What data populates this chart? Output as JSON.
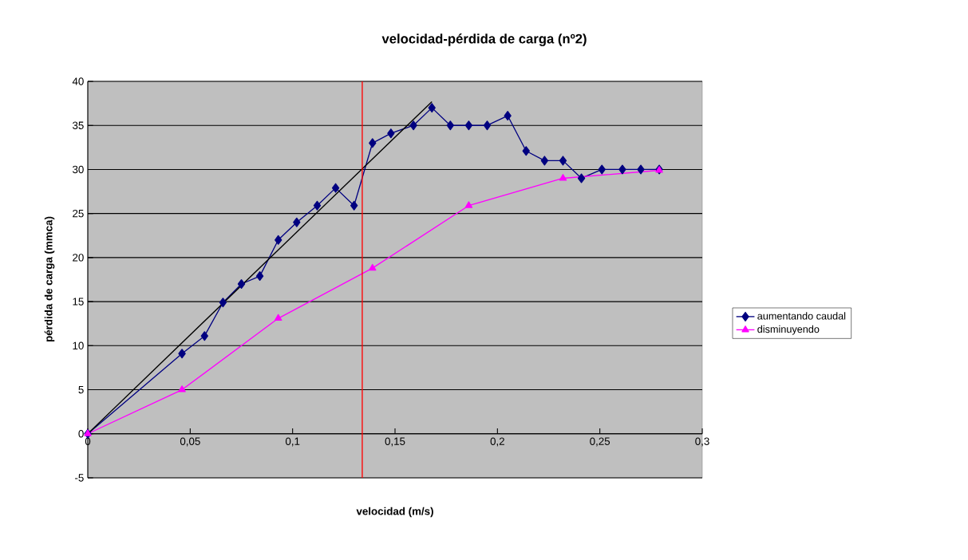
{
  "chart_data": {
    "type": "line",
    "title": "velocidad-pérdida de carga (nº2)",
    "xlabel": "velocidad (m/s)",
    "ylabel": "pérdida de carga (mmca)",
    "xlim": [
      0,
      0.3
    ],
    "ylim": [
      -5,
      40
    ],
    "xticks": [
      0,
      {
        "value": 0.05,
        "label": "0,05"
      },
      {
        "value": 0.1,
        "label": "0,1"
      },
      {
        "value": 0.15,
        "label": "0,15"
      },
      {
        "value": 0.2,
        "label": "0,2"
      },
      {
        "value": 0.25,
        "label": "0,25"
      },
      {
        "value": 0.3,
        "label": "0,3"
      }
    ],
    "yticks": [
      -5,
      0,
      5,
      10,
      15,
      20,
      25,
      30,
      35,
      40
    ],
    "grid": "y",
    "legend": "right",
    "series": [
      {
        "name": "aumentando caudal",
        "color": "#000080",
        "marker": "diamond",
        "x": [
          0,
          0.046,
          0.057,
          0.066,
          0.075,
          0.084,
          0.093,
          0.102,
          0.112,
          0.121,
          0.13,
          0.139,
          0.148,
          0.159,
          0.168,
          0.177,
          0.186,
          0.195,
          0.205,
          0.214,
          0.223,
          0.232,
          0.241,
          0.251,
          0.261,
          0.27,
          0.279
        ],
        "values": [
          0,
          9.1,
          11.1,
          14.9,
          17,
          17.9,
          22,
          24,
          25.9,
          27.9,
          25.9,
          33,
          34.1,
          35,
          37,
          35,
          35,
          35,
          36.1,
          32.1,
          31,
          31,
          29,
          30,
          30,
          30,
          30
        ]
      },
      {
        "name": "disminuyendo",
        "color": "#ff00ff",
        "marker": "triangle",
        "x": [
          0,
          0.046,
          0.093,
          0.139,
          0.186,
          0.232,
          0.279
        ],
        "values": [
          0,
          5,
          13.1,
          18.8,
          25.9,
          29,
          29.9
        ]
      },
      {
        "color": "#000000",
        "marker": "none",
        "x": [
          0,
          0.168
        ],
        "values": [
          0,
          37.7
        ]
      }
    ],
    "ref_lines": [
      {
        "axis": "x",
        "value": 0.134,
        "color": "#ff0000"
      }
    ]
  }
}
